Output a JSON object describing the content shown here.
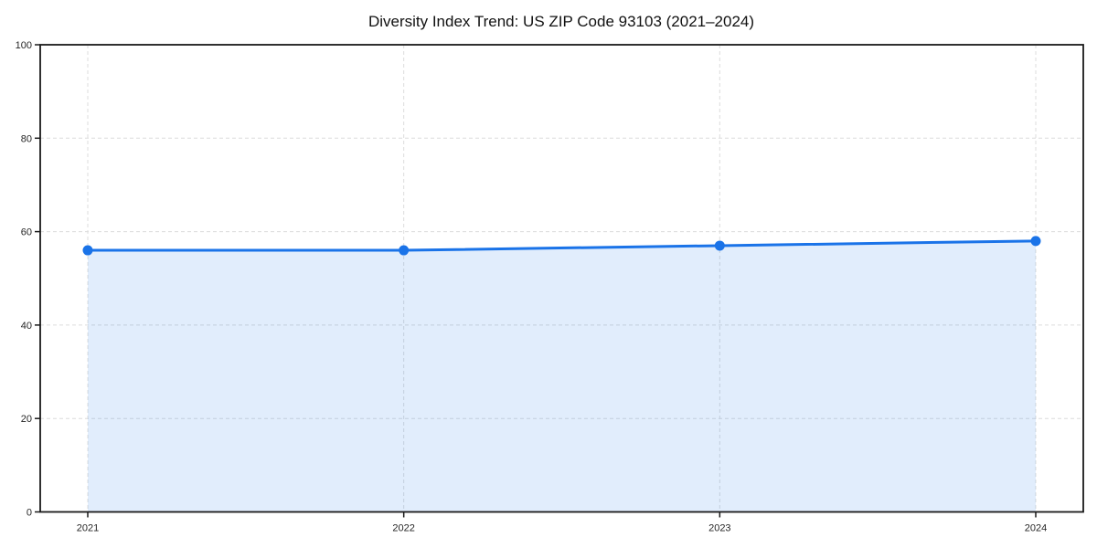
{
  "chart_data": {
    "type": "line",
    "title": "Diversity Index Trend: US ZIP Code 93103 (2021–2024)",
    "categories": [
      "2021",
      "2022",
      "2023",
      "2024"
    ],
    "series": [
      {
        "name": "Diversity Index",
        "values": [
          56,
          56,
          57,
          58
        ]
      }
    ],
    "xlabel": "",
    "ylabel": "",
    "ylim": [
      0,
      100
    ],
    "yticks": [
      0,
      20,
      40,
      60,
      80,
      100
    ],
    "grid": true,
    "grid_style": "dashed",
    "legend": "none",
    "area_fill": true,
    "marker": "circle",
    "colors": {
      "line": "#1a73e8",
      "marker": "#1a73e8",
      "area_fill": "rgba(26,115,232,0.13)",
      "grid": "#dcdcdc",
      "axis": "#1a1a1a",
      "tick_label": "#262626",
      "background": "#ffffff"
    }
  }
}
